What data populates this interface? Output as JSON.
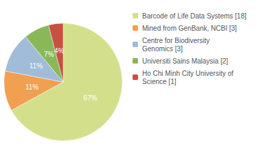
{
  "chart_data": {
    "type": "pie",
    "categories": [
      "Barcode of Life Data Systems [18]",
      "Mined from GenBank, NCBI [3]",
      "Centre for Biodiversity\nGenomics [3]",
      "Universiti Sains Malaysia [2]",
      "Ho Chi Minh City University of\nScience [1]"
    ],
    "values": [
      67,
      11,
      11,
      7,
      4
    ],
    "value_labels": [
      "67%",
      "11%",
      "11%",
      "7%",
      "4%"
    ],
    "colors": [
      "#d4df8c",
      "#f0a050",
      "#a0bcd8",
      "#8ab858",
      "#c85040"
    ],
    "data_labels": true,
    "legend": "upper right"
  }
}
